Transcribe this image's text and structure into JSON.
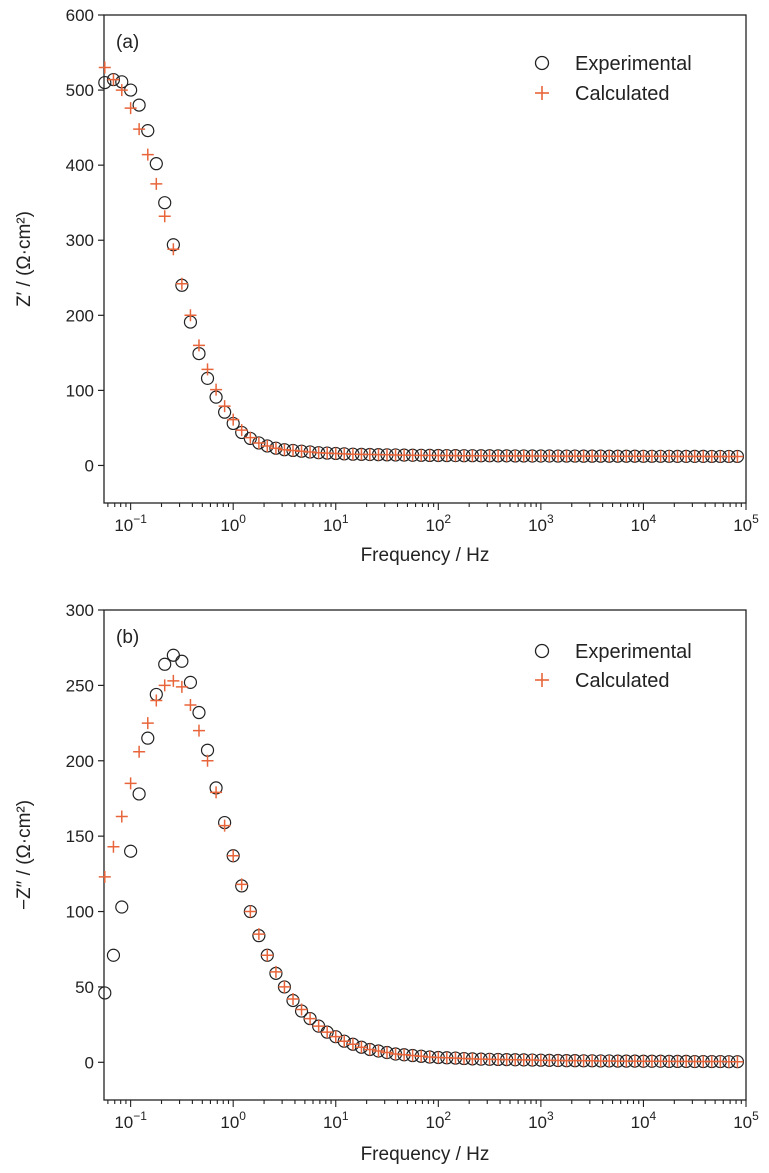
{
  "chart_data": [
    {
      "type": "scatter",
      "panel_label": "(a)",
      "xlabel": "Frequency / Hz",
      "ylabel": "Z′ / (Ω·cm²)",
      "xscale": "log",
      "xlim": [
        0.055,
        100000
      ],
      "ylim": [
        -50,
        600
      ],
      "yticks": [
        0,
        100,
        200,
        300,
        400,
        500,
        600
      ],
      "xticks": [
        {
          "value": 0.1,
          "base": "10",
          "exp": "−1"
        },
        {
          "value": 1,
          "base": "10",
          "exp": "0"
        },
        {
          "value": 10,
          "base": "10",
          "exp": "1"
        },
        {
          "value": 100,
          "base": "10",
          "exp": "2"
        },
        {
          "value": 1000,
          "base": "10",
          "exp": "3"
        },
        {
          "value": 10000,
          "base": "10",
          "exp": "4"
        },
        {
          "value": 100000,
          "base": "10",
          "exp": "5"
        }
      ],
      "grid": false,
      "legend_position": "top-right",
      "series": [
        {
          "name": "Experimental",
          "marker": "circle",
          "color": "#222222",
          "x": [
            0.056,
            0.068,
            0.082,
            0.1,
            0.121,
            0.147,
            0.178,
            0.215,
            0.261,
            0.316,
            0.383,
            0.464,
            0.562,
            0.681,
            0.825,
            1.0,
            1.21,
            1.47,
            1.78,
            2.15,
            2.61,
            3.16,
            3.83,
            4.64,
            5.62,
            6.81,
            8.25,
            10,
            12.1,
            14.7,
            17.8,
            21.5,
            26.1,
            31.6,
            38.3,
            46.4,
            56.2,
            68.1,
            82.5,
            100,
            121,
            147,
            178,
            215,
            261,
            316,
            383,
            464,
            562,
            681,
            825,
            1000,
            1210,
            1470,
            1780,
            2150,
            2610,
            3160,
            3830,
            4640,
            5620,
            6810,
            8250,
            10000,
            12100,
            14700,
            17800,
            21500,
            26100,
            31600,
            38300,
            46400,
            56200,
            68100,
            82500
          ],
          "y": [
            510,
            514,
            511,
            500,
            480,
            446,
            402,
            350,
            294,
            240,
            191,
            149,
            116,
            91,
            71,
            56,
            44,
            36,
            30,
            26,
            23,
            21,
            20,
            19,
            18,
            17,
            16.5,
            16,
            15.5,
            15,
            14.8,
            14.6,
            14.4,
            14.2,
            14,
            13.8,
            13.6,
            13.5,
            13.4,
            13.3,
            13.2,
            13.1,
            13,
            13,
            12.9,
            12.9,
            12.8,
            12.8,
            12.7,
            12.7,
            12.6,
            12.6,
            12.6,
            12.5,
            12.5,
            12.5,
            12.4,
            12.4,
            12.4,
            12.3,
            12.3,
            12.3,
            12.3,
            12.2,
            12.2,
            12.2,
            12.2,
            12.1,
            12.1,
            12.1,
            12.1,
            12,
            12,
            12,
            12
          ]
        },
        {
          "name": "Calculated",
          "marker": "plus",
          "color": "#e8653b",
          "x": [
            0.056,
            0.068,
            0.082,
            0.1,
            0.121,
            0.147,
            0.178,
            0.215,
            0.261,
            0.316,
            0.383,
            0.464,
            0.562,
            0.681,
            0.825,
            1.0,
            1.21,
            1.47,
            1.78,
            2.15,
            2.61,
            3.16,
            3.83,
            4.64,
            5.62,
            6.81,
            8.25,
            10,
            12.1,
            14.7,
            17.8,
            21.5,
            26.1,
            31.6,
            38.3,
            46.4,
            56.2,
            68.1,
            82.5,
            100,
            121,
            147,
            178,
            215,
            261,
            316,
            383,
            464,
            562,
            681,
            825,
            1000,
            1210,
            1470,
            1780,
            2150,
            2610,
            3160,
            3830,
            4640,
            5620,
            6810,
            8250,
            10000,
            12100,
            14700,
            17800,
            21500,
            26100,
            31600,
            38300,
            46400,
            56200,
            68100,
            82500
          ],
          "y": [
            530,
            514,
            500,
            476,
            448,
            414,
            375,
            332,
            288,
            242,
            200,
            160,
            128,
            101,
            79,
            61,
            47,
            37,
            30,
            26,
            23,
            21,
            20,
            19,
            18,
            17,
            16.5,
            16,
            15.5,
            15,
            14.8,
            14.6,
            14.4,
            14.2,
            14,
            13.8,
            13.6,
            13.5,
            13.4,
            13.3,
            13.2,
            13.1,
            13,
            13,
            12.9,
            12.9,
            12.8,
            12.8,
            12.7,
            12.7,
            12.6,
            12.6,
            12.6,
            12.5,
            12.5,
            12.5,
            12.4,
            12.4,
            12.4,
            12.3,
            12.3,
            12.3,
            12.3,
            12.2,
            12.2,
            12.2,
            12.2,
            12.1,
            12.1,
            12.1,
            12.1,
            12,
            12,
            12,
            12
          ]
        }
      ]
    },
    {
      "type": "scatter",
      "panel_label": "(b)",
      "xlabel": "Frequency / Hz",
      "ylabel": "−Z″ / (Ω·cm²)",
      "xscale": "log",
      "xlim": [
        0.055,
        100000
      ],
      "ylim": [
        -25,
        300
      ],
      "yticks": [
        0,
        50,
        100,
        150,
        200,
        250,
        300
      ],
      "xticks": [
        {
          "value": 0.1,
          "base": "10",
          "exp": "−1"
        },
        {
          "value": 1,
          "base": "10",
          "exp": "0"
        },
        {
          "value": 10,
          "base": "10",
          "exp": "1"
        },
        {
          "value": 100,
          "base": "10",
          "exp": "2"
        },
        {
          "value": 1000,
          "base": "10",
          "exp": "3"
        },
        {
          "value": 10000,
          "base": "10",
          "exp": "4"
        },
        {
          "value": 100000,
          "base": "10",
          "exp": "5"
        }
      ],
      "grid": false,
      "legend_position": "top-right",
      "series": [
        {
          "name": "Experimental",
          "marker": "circle",
          "color": "#222222",
          "x": [
            0.056,
            0.068,
            0.082,
            0.1,
            0.121,
            0.147,
            0.178,
            0.215,
            0.261,
            0.316,
            0.383,
            0.464,
            0.562,
            0.681,
            0.825,
            1.0,
            1.21,
            1.47,
            1.78,
            2.15,
            2.61,
            3.16,
            3.83,
            4.64,
            5.62,
            6.81,
            8.25,
            10,
            12.1,
            14.7,
            17.8,
            21.5,
            26.1,
            31.6,
            38.3,
            46.4,
            56.2,
            68.1,
            82.5,
            100,
            121,
            147,
            178,
            215,
            261,
            316,
            383,
            464,
            562,
            681,
            825,
            1000,
            1210,
            1470,
            1780,
            2150,
            2610,
            3160,
            3830,
            4640,
            5620,
            6810,
            8250,
            10000,
            12100,
            14700,
            17800,
            21500,
            26100,
            31600,
            38300,
            46400,
            56200,
            68100,
            82500
          ],
          "y": [
            46,
            71,
            103,
            140,
            178,
            215,
            244,
            264,
            270,
            266,
            252,
            232,
            207,
            182,
            159,
            137,
            117,
            100,
            84,
            71,
            59,
            50,
            41,
            34,
            29,
            24,
            20,
            17,
            14,
            12,
            10,
            8.5,
            7.5,
            6.5,
            5.5,
            5,
            4.5,
            4,
            3.5,
            3.2,
            3,
            2.8,
            2.5,
            2.3,
            2.1,
            2,
            1.9,
            1.8,
            1.7,
            1.6,
            1.5,
            1.4,
            1.3,
            1.2,
            1.1,
            1.1,
            1,
            1,
            0.9,
            0.9,
            0.8,
            0.8,
            0.8,
            0.7,
            0.7,
            0.7,
            0.6,
            0.6,
            0.6,
            0.5,
            0.5,
            0.5,
            0.5,
            0.4,
            0.4
          ]
        },
        {
          "name": "Calculated",
          "marker": "plus",
          "color": "#e8653b",
          "x": [
            0.056,
            0.068,
            0.082,
            0.1,
            0.121,
            0.147,
            0.178,
            0.215,
            0.261,
            0.316,
            0.383,
            0.464,
            0.562,
            0.681,
            0.825,
            1.0,
            1.21,
            1.47,
            1.78,
            2.15,
            2.61,
            3.16,
            3.83,
            4.64,
            5.62,
            6.81,
            8.25,
            10,
            12.1,
            14.7,
            17.8,
            21.5,
            26.1,
            31.6,
            38.3,
            46.4,
            56.2,
            68.1,
            82.5,
            100,
            121,
            147,
            178,
            215,
            261,
            316,
            383,
            464,
            562,
            681,
            825,
            1000,
            1210,
            1470,
            1780,
            2150,
            2610,
            3160,
            3830,
            4640,
            5620,
            6810,
            8250,
            10000,
            12100,
            14700,
            17800,
            21500,
            26100,
            31600,
            38300,
            46400,
            56200,
            68100,
            82500
          ],
          "y": [
            123,
            143,
            163,
            185,
            206,
            225,
            240,
            250,
            253,
            249,
            237,
            220,
            200,
            179,
            157,
            137,
            118,
            100,
            85,
            71,
            60,
            50,
            42,
            35,
            29,
            24,
            20,
            17,
            14,
            12,
            10,
            8.5,
            7.5,
            6.5,
            5.5,
            5,
            4.5,
            4,
            3.5,
            3.2,
            3,
            2.8,
            2.5,
            2.3,
            2.1,
            2,
            1.9,
            1.8,
            1.7,
            1.6,
            1.5,
            1.4,
            1.3,
            1.2,
            1.1,
            1.1,
            1,
            1,
            0.9,
            0.9,
            0.8,
            0.8,
            0.8,
            0.7,
            0.7,
            0.7,
            0.6,
            0.6,
            0.6,
            0.5,
            0.5,
            0.5,
            0.5,
            0.4,
            0.4
          ]
        }
      ]
    }
  ]
}
